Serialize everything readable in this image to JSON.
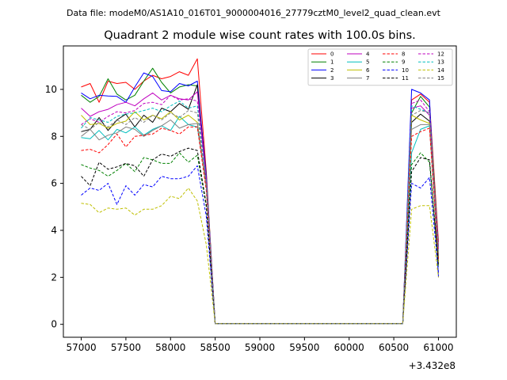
{
  "suptitle": "Data file: modeM0/AS1A10_016T01_9000004016_27779cztM0_level2_quad_clean.evt",
  "chart_data": {
    "type": "line",
    "title": "Quadrant 2 module wise count rates with 100.0s bins.",
    "xlabel": "",
    "ylabel": "",
    "x_offset_label": "+3.432e8",
    "xlim": [
      56800,
      61200
    ],
    "ylim": [
      -0.55,
      11.85
    ],
    "xticks": [
      57000,
      57500,
      58000,
      58500,
      59000,
      59500,
      60000,
      60500,
      61000
    ],
    "yticks": [
      0,
      2,
      4,
      6,
      8,
      10
    ],
    "grid": false,
    "legend": {
      "placement": "top-right",
      "columns": 4
    },
    "x": [
      57000,
      57100,
      57200,
      57300,
      57400,
      57500,
      57600,
      57700,
      57800,
      57900,
      58000,
      58100,
      58200,
      58300,
      58400,
      58500,
      58600,
      58700,
      58800,
      58900,
      59000,
      59100,
      59200,
      59300,
      59400,
      59500,
      59600,
      59700,
      59800,
      59900,
      60000,
      60100,
      60200,
      60300,
      60400,
      60500,
      60600,
      60700,
      60800,
      60900,
      61000
    ],
    "series": [
      {
        "name": "0",
        "color": "#ff0000",
        "dashed": false,
        "values": [
          10.1,
          10.25,
          9.45,
          10.35,
          10.25,
          10.3,
          10.0,
          10.35,
          10.6,
          10.45,
          10.55,
          10.75,
          10.6,
          11.3,
          6.5,
          0.03,
          0.03,
          0.03,
          0.03,
          0.03,
          0.03,
          0.03,
          0.03,
          0.03,
          0.03,
          0.03,
          0.03,
          0.03,
          0.03,
          0.03,
          0.03,
          0.03,
          0.03,
          0.03,
          0.03,
          0.03,
          0.03,
          9.55,
          9.8,
          9.45,
          3.5
        ]
      },
      {
        "name": "1",
        "color": "#008000",
        "dashed": false,
        "values": [
          9.75,
          9.45,
          9.7,
          10.45,
          9.8,
          9.55,
          9.75,
          10.35,
          10.9,
          10.3,
          9.85,
          10.1,
          10.2,
          10.15,
          6.4,
          0.03,
          0.03,
          0.03,
          0.03,
          0.03,
          0.03,
          0.03,
          0.03,
          0.03,
          0.03,
          0.03,
          0.03,
          0.03,
          0.03,
          0.03,
          0.03,
          0.03,
          0.03,
          0.03,
          0.03,
          0.03,
          0.03,
          9.0,
          9.7,
          9.25,
          3.3
        ]
      },
      {
        "name": "2",
        "color": "#0000ff",
        "dashed": false,
        "values": [
          9.85,
          9.6,
          9.75,
          9.72,
          9.7,
          9.45,
          10.1,
          10.7,
          10.55,
          9.95,
          9.9,
          10.25,
          10.15,
          10.35,
          6.3,
          0.03,
          0.03,
          0.03,
          0.03,
          0.03,
          0.03,
          0.03,
          0.03,
          0.03,
          0.03,
          0.03,
          0.03,
          0.03,
          0.03,
          0.03,
          0.03,
          0.03,
          0.03,
          0.03,
          0.03,
          0.03,
          0.03,
          10.0,
          9.85,
          9.55,
          2.0
        ]
      },
      {
        "name": "3",
        "color": "#000000",
        "dashed": false,
        "values": [
          8.2,
          8.3,
          8.8,
          8.25,
          8.7,
          8.95,
          8.4,
          8.9,
          8.6,
          9.2,
          9.05,
          9.4,
          9.15,
          10.2,
          6.0,
          0.03,
          0.03,
          0.03,
          0.03,
          0.03,
          0.03,
          0.03,
          0.03,
          0.03,
          0.03,
          0.03,
          0.03,
          0.03,
          0.03,
          0.03,
          0.03,
          0.03,
          0.03,
          0.03,
          0.03,
          0.03,
          0.03,
          8.6,
          8.95,
          8.65,
          2.9
        ]
      },
      {
        "name": "4",
        "color": "#bf00bf",
        "dashed": false,
        "values": [
          9.2,
          8.85,
          9.05,
          9.15,
          9.35,
          9.45,
          9.3,
          9.6,
          9.85,
          9.55,
          9.75,
          9.6,
          9.55,
          9.9,
          6.2,
          0.03,
          0.03,
          0.03,
          0.03,
          0.03,
          0.03,
          0.03,
          0.03,
          0.03,
          0.03,
          0.03,
          0.03,
          0.03,
          0.03,
          0.03,
          0.03,
          0.03,
          0.03,
          0.03,
          0.03,
          0.03,
          0.03,
          9.2,
          9.3,
          8.9,
          3.2
        ]
      },
      {
        "name": "5",
        "color": "#00bfbf",
        "dashed": false,
        "values": [
          7.95,
          7.9,
          8.25,
          7.85,
          8.3,
          8.15,
          8.4,
          8.05,
          8.3,
          8.45,
          8.25,
          8.85,
          8.5,
          8.4,
          5.9,
          0.03,
          0.03,
          0.03,
          0.03,
          0.03,
          0.03,
          0.03,
          0.03,
          0.03,
          0.03,
          0.03,
          0.03,
          0.03,
          0.03,
          0.03,
          0.03,
          0.03,
          0.03,
          0.03,
          0.03,
          0.03,
          0.03,
          7.3,
          8.3,
          8.45,
          2.8
        ]
      },
      {
        "name": "6",
        "color": "#bfbf00",
        "dashed": false,
        "values": [
          8.9,
          8.5,
          8.55,
          8.35,
          8.55,
          8.65,
          9.05,
          8.7,
          8.9,
          8.75,
          9.05,
          8.7,
          8.9,
          8.6,
          5.8,
          0.03,
          0.03,
          0.03,
          0.03,
          0.03,
          0.03,
          0.03,
          0.03,
          0.03,
          0.03,
          0.03,
          0.03,
          0.03,
          0.03,
          0.03,
          0.03,
          0.03,
          0.03,
          0.03,
          0.03,
          0.03,
          0.03,
          8.9,
          8.7,
          8.55,
          2.6
        ]
      },
      {
        "name": "7",
        "color": "#808080",
        "dashed": false,
        "values": [
          8.0,
          8.3,
          7.85,
          8.05,
          8.15,
          8.4,
          8.3,
          8.0,
          8.25,
          8.45,
          8.7,
          8.35,
          8.5,
          8.55,
          5.9,
          0.03,
          0.03,
          0.03,
          0.03,
          0.03,
          0.03,
          0.03,
          0.03,
          0.03,
          0.03,
          0.03,
          0.03,
          0.03,
          0.03,
          0.03,
          0.03,
          0.03,
          0.03,
          0.03,
          0.03,
          0.03,
          0.03,
          8.3,
          8.5,
          8.5,
          2.8
        ]
      },
      {
        "name": "8",
        "color": "#ff0000",
        "dashed": true,
        "values": [
          7.4,
          7.45,
          7.3,
          7.65,
          8.1,
          7.55,
          8.0,
          8.05,
          8.1,
          8.35,
          8.25,
          8.1,
          8.4,
          8.4,
          5.7,
          0.03,
          0.03,
          0.03,
          0.03,
          0.03,
          0.03,
          0.03,
          0.03,
          0.03,
          0.03,
          0.03,
          0.03,
          0.03,
          0.03,
          0.03,
          0.03,
          0.03,
          0.03,
          0.03,
          0.03,
          0.03,
          0.03,
          8.0,
          8.2,
          8.35,
          2.7
        ]
      },
      {
        "name": "9",
        "color": "#008000",
        "dashed": true,
        "values": [
          6.8,
          6.65,
          6.55,
          6.3,
          6.55,
          6.85,
          6.5,
          7.1,
          7.0,
          6.85,
          6.85,
          7.3,
          6.9,
          7.2,
          5.0,
          0.03,
          0.03,
          0.03,
          0.03,
          0.03,
          0.03,
          0.03,
          0.03,
          0.03,
          0.03,
          0.03,
          0.03,
          0.03,
          0.03,
          0.03,
          0.03,
          0.03,
          0.03,
          0.03,
          0.03,
          0.03,
          0.03,
          6.8,
          7.3,
          6.9,
          2.4
        ]
      },
      {
        "name": "10",
        "color": "#0000ff",
        "dashed": true,
        "values": [
          5.5,
          5.8,
          5.7,
          6.0,
          5.1,
          5.9,
          5.5,
          5.95,
          5.85,
          6.3,
          6.2,
          6.2,
          6.3,
          6.75,
          4.6,
          0.03,
          0.03,
          0.03,
          0.03,
          0.03,
          0.03,
          0.03,
          0.03,
          0.03,
          0.03,
          0.03,
          0.03,
          0.03,
          0.03,
          0.03,
          0.03,
          0.03,
          0.03,
          0.03,
          0.03,
          0.03,
          0.03,
          6.0,
          5.8,
          6.25,
          2.2
        ]
      },
      {
        "name": "11",
        "color": "#000000",
        "dashed": true,
        "values": [
          6.3,
          5.9,
          6.9,
          6.6,
          6.7,
          6.85,
          6.75,
          6.3,
          7.0,
          7.25,
          7.15,
          7.35,
          7.5,
          7.4,
          5.1,
          0.03,
          0.03,
          0.03,
          0.03,
          0.03,
          0.03,
          0.03,
          0.03,
          0.03,
          0.03,
          0.03,
          0.03,
          0.03,
          0.03,
          0.03,
          0.03,
          0.03,
          0.03,
          0.03,
          0.03,
          0.03,
          0.03,
          6.5,
          7.1,
          7.0,
          2.5
        ]
      },
      {
        "name": "12",
        "color": "#bf00bf",
        "dashed": true,
        "values": [
          8.5,
          8.75,
          8.6,
          8.85,
          9.05,
          9.0,
          9.1,
          9.4,
          9.45,
          9.35,
          9.75,
          9.55,
          9.6,
          9.5,
          6.1,
          0.03,
          0.03,
          0.03,
          0.03,
          0.03,
          0.03,
          0.03,
          0.03,
          0.03,
          0.03,
          0.03,
          0.03,
          0.03,
          0.03,
          0.03,
          0.03,
          0.03,
          0.03,
          0.03,
          0.03,
          0.03,
          0.03,
          9.4,
          9.55,
          9.05,
          3.2
        ]
      },
      {
        "name": "13",
        "color": "#00bfbf",
        "dashed": true,
        "values": [
          8.35,
          8.8,
          8.7,
          8.6,
          8.85,
          8.95,
          9.0,
          9.1,
          9.2,
          9.05,
          9.3,
          9.5,
          9.2,
          9.3,
          6.0,
          0.03,
          0.03,
          0.03,
          0.03,
          0.03,
          0.03,
          0.03,
          0.03,
          0.03,
          0.03,
          0.03,
          0.03,
          0.03,
          0.03,
          0.03,
          0.03,
          0.03,
          0.03,
          0.03,
          0.03,
          0.03,
          0.03,
          9.3,
          9.15,
          9.0,
          3.0
        ]
      },
      {
        "name": "14",
        "color": "#bfbf00",
        "dashed": true,
        "values": [
          5.15,
          5.1,
          4.75,
          4.95,
          4.9,
          4.95,
          4.65,
          4.9,
          4.9,
          5.05,
          5.45,
          5.35,
          5.8,
          5.25,
          3.4,
          0.03,
          0.03,
          0.03,
          0.03,
          0.03,
          0.03,
          0.03,
          0.03,
          0.03,
          0.03,
          0.03,
          0.03,
          0.03,
          0.03,
          0.03,
          0.03,
          0.03,
          0.03,
          0.03,
          0.03,
          0.03,
          0.03,
          4.9,
          5.05,
          5.05,
          2.0
        ]
      },
      {
        "name": "15",
        "color": "#808080",
        "dashed": true,
        "values": [
          8.5,
          8.3,
          8.6,
          8.4,
          8.7,
          8.5,
          8.8,
          8.6,
          8.9,
          8.7,
          9.0,
          8.8,
          9.1,
          9.0,
          5.9,
          0.03,
          0.03,
          0.03,
          0.03,
          0.03,
          0.03,
          0.03,
          0.03,
          0.03,
          0.03,
          0.03,
          0.03,
          0.03,
          0.03,
          0.03,
          0.03,
          0.03,
          0.03,
          0.03,
          0.03,
          0.03,
          0.03,
          8.9,
          9.1,
          9.0,
          3.0
        ]
      }
    ]
  }
}
